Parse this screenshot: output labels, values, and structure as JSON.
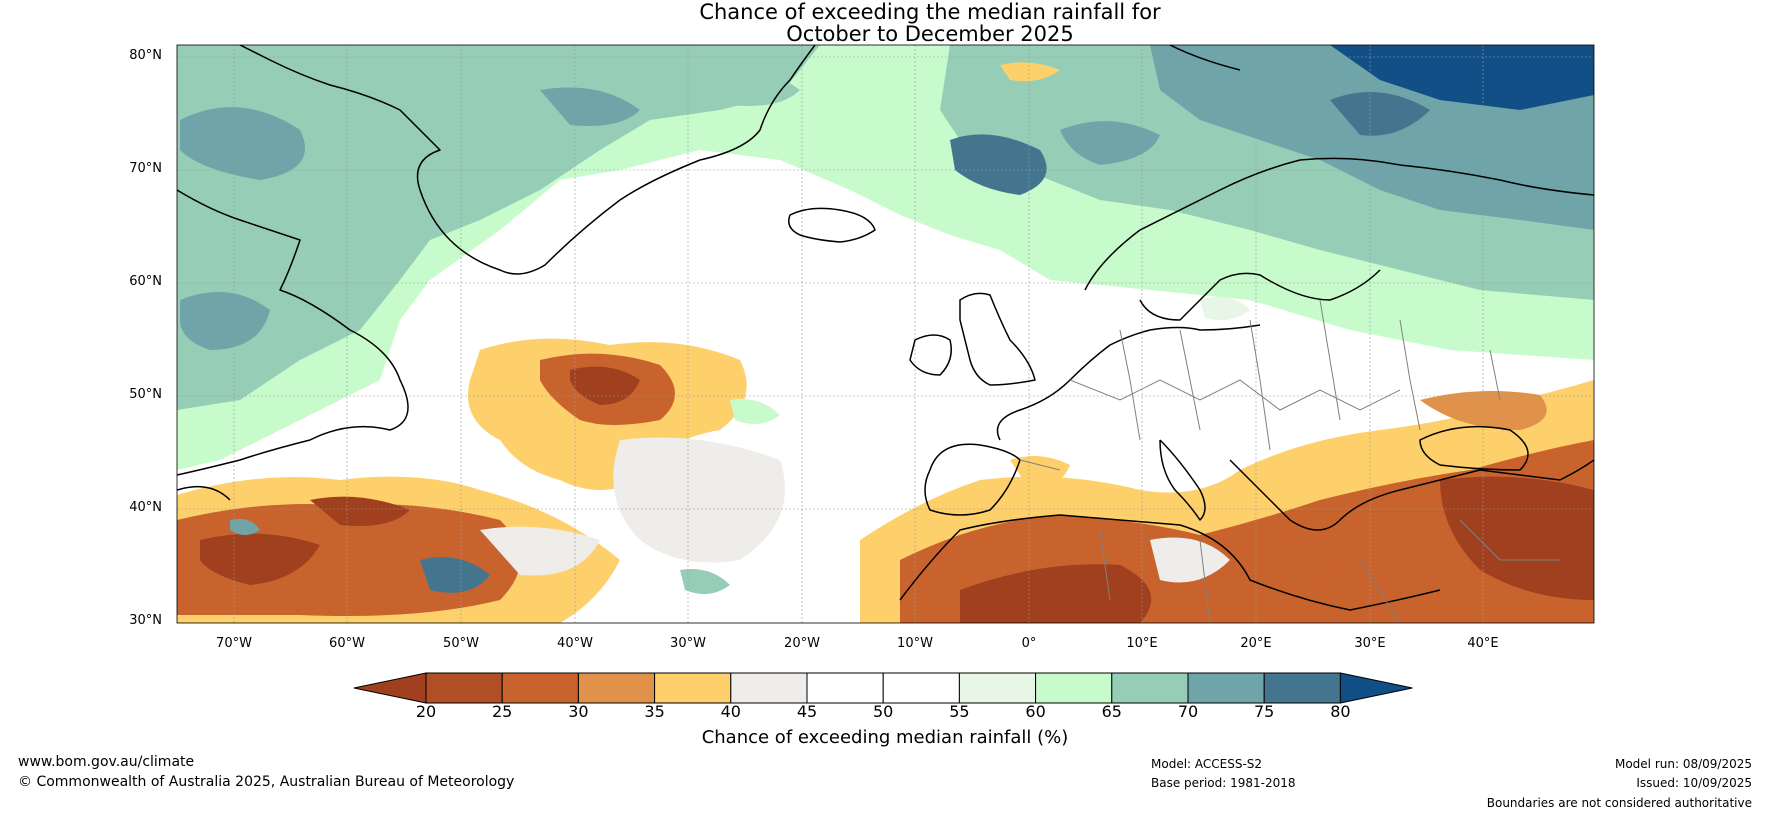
{
  "title": {
    "line1": "Chance of exceeding the median rainfall for",
    "line2": "October to December 2025"
  },
  "map": {
    "lat_labels": [
      "80°N",
      "70°N",
      "60°N",
      "50°N",
      "40°N",
      "30°N"
    ],
    "lon_labels": [
      "70°W",
      "60°W",
      "50°W",
      "40°W",
      "30°W",
      "20°W",
      "10°W",
      "0°",
      "10°E",
      "20°E",
      "30°E",
      "40°E"
    ],
    "extent": {
      "lon_min": -75,
      "lon_max": 50,
      "lat_min": 30,
      "lat_max": 81
    }
  },
  "colorbar": {
    "ticks": [
      "20",
      "25",
      "30",
      "35",
      "40",
      "45",
      "50",
      "55",
      "60",
      "65",
      "70",
      "75",
      "80"
    ],
    "colors": [
      "#a0401e",
      "#b04e26",
      "#c9632d",
      "#e0924a",
      "#fdd06b",
      "#eeedea",
      "#ffffff",
      "#ffffff",
      "#e8f6e8",
      "#c8fbcc",
      "#96cdb6",
      "#6fa4a8",
      "#44758f",
      "#124f86"
    ],
    "title": "Chance of exceeding median rainfall (%)"
  },
  "footer": {
    "website": "www.bom.gov.au/climate",
    "copyright": "© Commonwealth of Australia 2025, Australian Bureau of Meteorology",
    "model": "Model: ACCESS-S2",
    "base_period": "Base period: 1981-2018",
    "model_run": "Model run: 08/09/2025",
    "issued": "Issued: 10/09/2025",
    "disclaimer": "Boundaries are not considered authoritative"
  }
}
